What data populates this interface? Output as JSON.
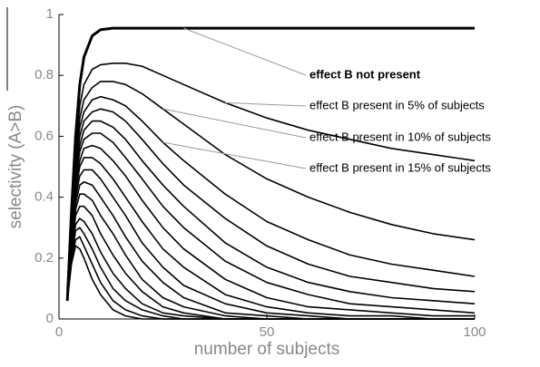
{
  "chart_data": {
    "type": "line",
    "xlabel": "number of subjects",
    "ylabel": "selectivity (A>B)",
    "xlim": [
      0,
      100
    ],
    "ylim": [
      0,
      1
    ],
    "xticks": [
      0,
      50,
      100
    ],
    "yticks": [
      0,
      0.2,
      0.4,
      0.6,
      0.8,
      1
    ],
    "x": [
      2,
      3,
      4,
      5,
      6,
      8,
      10,
      13,
      16,
      20,
      25,
      30,
      40,
      50,
      60,
      70,
      80,
      90,
      100
    ],
    "series": [
      {
        "name": "effect B not present",
        "color": "#000000",
        "values": [
          0.06,
          0.35,
          0.6,
          0.77,
          0.86,
          0.93,
          0.95,
          0.955,
          0.955,
          0.955,
          0.955,
          0.955,
          0.955,
          0.955,
          0.955,
          0.955,
          0.955,
          0.955,
          0.955
        ]
      },
      {
        "name": "effect B present in 5% of subjects",
        "color": "#000000",
        "values": [
          0.06,
          0.33,
          0.56,
          0.7,
          0.77,
          0.82,
          0.835,
          0.84,
          0.84,
          0.83,
          0.8,
          0.77,
          0.71,
          0.66,
          0.62,
          0.59,
          0.56,
          0.54,
          0.52
        ]
      },
      {
        "name": "effect B present in 10% of subjects",
        "color": "#000000",
        "values": [
          0.06,
          0.32,
          0.54,
          0.66,
          0.72,
          0.76,
          0.78,
          0.78,
          0.77,
          0.74,
          0.69,
          0.64,
          0.54,
          0.46,
          0.4,
          0.35,
          0.31,
          0.28,
          0.26
        ]
      },
      {
        "name": "effect B present in 15% of subjects",
        "color": "#000000",
        "values": [
          0.06,
          0.31,
          0.52,
          0.63,
          0.68,
          0.72,
          0.73,
          0.72,
          0.7,
          0.65,
          0.58,
          0.52,
          0.41,
          0.32,
          0.26,
          0.21,
          0.18,
          0.16,
          0.14
        ]
      },
      {
        "color": "#000000",
        "values": [
          0.06,
          0.3,
          0.5,
          0.6,
          0.65,
          0.68,
          0.69,
          0.68,
          0.65,
          0.59,
          0.51,
          0.44,
          0.33,
          0.24,
          0.18,
          0.14,
          0.12,
          0.1,
          0.09
        ]
      },
      {
        "color": "#000000",
        "values": [
          0.06,
          0.29,
          0.48,
          0.57,
          0.62,
          0.65,
          0.65,
          0.63,
          0.59,
          0.52,
          0.44,
          0.37,
          0.25,
          0.17,
          0.12,
          0.09,
          0.07,
          0.06,
          0.05
        ]
      },
      {
        "color": "#000000",
        "values": [
          0.06,
          0.28,
          0.46,
          0.55,
          0.59,
          0.61,
          0.61,
          0.58,
          0.53,
          0.46,
          0.37,
          0.3,
          0.19,
          0.12,
          0.08,
          0.05,
          0.04,
          0.03,
          0.02
        ]
      },
      {
        "color": "#000000",
        "values": [
          0.06,
          0.27,
          0.44,
          0.52,
          0.56,
          0.57,
          0.56,
          0.52,
          0.47,
          0.39,
          0.3,
          0.23,
          0.13,
          0.07,
          0.04,
          0.03,
          0.02,
          0.01,
          0.01
        ]
      },
      {
        "color": "#000000",
        "values": [
          0.06,
          0.26,
          0.42,
          0.5,
          0.53,
          0.53,
          0.51,
          0.46,
          0.4,
          0.32,
          0.23,
          0.17,
          0.08,
          0.04,
          0.02,
          0.01,
          0.01,
          0,
          0
        ]
      },
      {
        "color": "#000000",
        "values": [
          0.06,
          0.25,
          0.4,
          0.47,
          0.49,
          0.49,
          0.46,
          0.4,
          0.34,
          0.25,
          0.17,
          0.11,
          0.05,
          0.02,
          0.01,
          0,
          0,
          0,
          0
        ]
      },
      {
        "color": "#000000",
        "values": [
          0.06,
          0.24,
          0.38,
          0.44,
          0.45,
          0.44,
          0.4,
          0.34,
          0.27,
          0.19,
          0.12,
          0.07,
          0.02,
          0.01,
          0,
          0,
          0,
          0,
          0
        ]
      },
      {
        "color": "#000000",
        "values": [
          0.06,
          0.23,
          0.36,
          0.41,
          0.41,
          0.39,
          0.34,
          0.28,
          0.21,
          0.13,
          0.07,
          0.04,
          0.01,
          0,
          0,
          0,
          0,
          0,
          0
        ]
      },
      {
        "color": "#000000",
        "values": [
          0.06,
          0.22,
          0.34,
          0.37,
          0.37,
          0.34,
          0.28,
          0.21,
          0.15,
          0.09,
          0.04,
          0.02,
          0,
          0,
          0,
          0,
          0,
          0,
          0
        ]
      },
      {
        "color": "#000000",
        "values": [
          0.06,
          0.21,
          0.31,
          0.33,
          0.32,
          0.28,
          0.22,
          0.15,
          0.1,
          0.05,
          0.02,
          0.01,
          0,
          0,
          0,
          0,
          0,
          0,
          0
        ]
      },
      {
        "color": "#000000",
        "values": [
          0.06,
          0.2,
          0.29,
          0.3,
          0.28,
          0.23,
          0.17,
          0.1,
          0.06,
          0.03,
          0.01,
          0,
          0,
          0,
          0,
          0,
          0,
          0,
          0
        ]
      },
      {
        "color": "#000000",
        "values": [
          0.06,
          0.19,
          0.26,
          0.27,
          0.24,
          0.18,
          0.12,
          0.06,
          0.03,
          0.01,
          0,
          0,
          0,
          0,
          0,
          0,
          0,
          0,
          0
        ]
      },
      {
        "color": "#000000",
        "values": [
          0.06,
          0.18,
          0.24,
          0.23,
          0.2,
          0.13,
          0.08,
          0.03,
          0.01,
          0,
          0,
          0,
          0,
          0,
          0,
          0,
          0,
          0,
          0
        ]
      }
    ]
  }
}
